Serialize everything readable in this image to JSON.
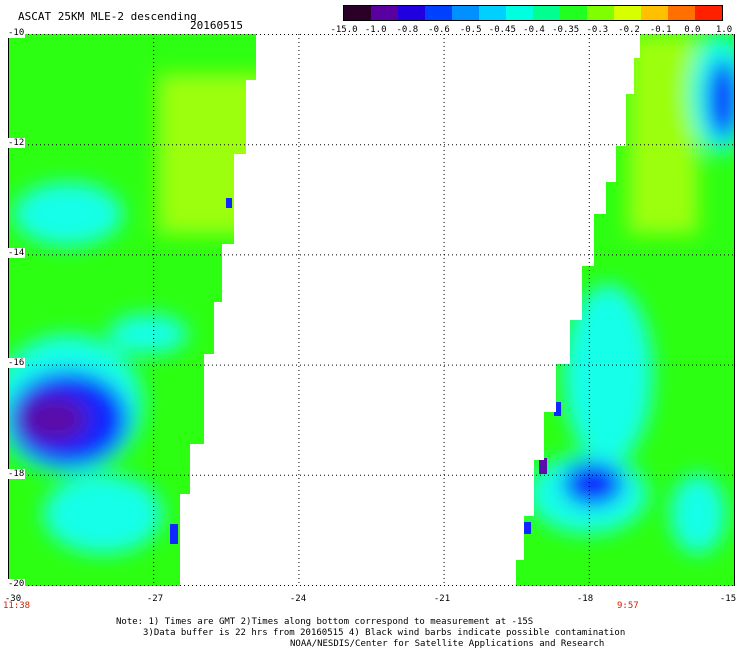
{
  "header": {
    "title": "ASCAT 25KM MLE-2 descending",
    "date": "20160515"
  },
  "colorbar": {
    "labels": [
      "-15.0",
      "-1.0",
      "-0.8",
      "-0.6",
      "-0.5",
      "-0.45",
      "-0.4",
      "-0.35",
      "-0.3",
      "-0.2",
      "-0.1",
      "0.0",
      "1.0"
    ],
    "colors": [
      "#2a0028",
      "#5a00a0",
      "#2000e0",
      "#0040ff",
      "#0090ff",
      "#00d0ff",
      "#00ffe0",
      "#00ff90",
      "#20ff20",
      "#80ff00",
      "#d8ff00",
      "#ffc000",
      "#ff7000",
      "#ff2000"
    ]
  },
  "map": {
    "lon_range": [
      -30,
      -15
    ],
    "lat_range": [
      -20,
      -10
    ],
    "y_ticks": [
      "-10",
      "-12",
      "-14",
      "-16",
      "-18",
      "-20"
    ],
    "x_ticks": [
      "-30",
      "-27",
      "-24",
      "-21",
      "-18",
      "-15"
    ],
    "times": {
      "left": "11:38",
      "right": "9:57"
    },
    "colors": {
      "green": "#2dff12",
      "lime": "#9cff0a",
      "cyan": "#18ffe8",
      "blue": "#1028ff",
      "purple": "#5a10a8",
      "grid": "#000000"
    }
  },
  "notes": {
    "line1": "Note: 1) Times are GMT 2)Times along bottom correspond to measurement at -15S",
    "line2": "3)Data buffer is 22 hrs from 20160515 4) Black wind barbs indicate possible contamination",
    "line3": "NOAA/NESDIS/Center for Satellite Applications and Research"
  }
}
